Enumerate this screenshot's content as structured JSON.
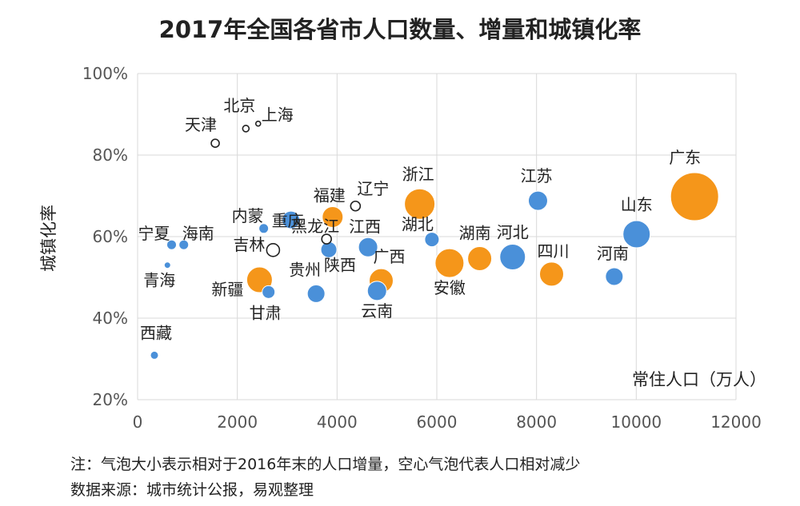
{
  "chart_data": {
    "type": "scatter",
    "title": "2017年全国各省市人口数量、增量和城镇化率",
    "xlabel": "常住人口（万人）",
    "ylabel": "城镇化率",
    "xlim": [
      0,
      12000
    ],
    "ylim": [
      20,
      100
    ],
    "x_ticks": [
      "0",
      "2000",
      "4000",
      "6000",
      "8000",
      "10000",
      "12000"
    ],
    "y_ticks": [
      "20%",
      "40%",
      "60%",
      "80%",
      "100%"
    ],
    "grid": "vertical and horizontal",
    "colors": {
      "blue": "#4a90d9",
      "orange": "#f5961a",
      "hollow": "#222222"
    },
    "points": [
      {
        "name": "广东",
        "x": 11169,
        "y": 69.8,
        "r": 30,
        "type": "orange"
      },
      {
        "name": "山东",
        "x": 10006,
        "y": 60.6,
        "r": 17,
        "type": "blue"
      },
      {
        "name": "河南",
        "x": 9559,
        "y": 50.2,
        "r": 11,
        "type": "blue"
      },
      {
        "name": "四川",
        "x": 8302,
        "y": 50.8,
        "r": 15,
        "type": "orange"
      },
      {
        "name": "江苏",
        "x": 8029,
        "y": 68.8,
        "r": 12,
        "type": "blue"
      },
      {
        "name": "河北",
        "x": 7520,
        "y": 55.0,
        "r": 16,
        "type": "blue"
      },
      {
        "name": "湖南",
        "x": 6860,
        "y": 54.6,
        "r": 15,
        "type": "orange"
      },
      {
        "name": "安徽",
        "x": 6255,
        "y": 53.5,
        "r": 18,
        "type": "orange"
      },
      {
        "name": "湖北",
        "x": 5902,
        "y": 59.3,
        "r": 9,
        "type": "blue"
      },
      {
        "name": "浙江",
        "x": 5657,
        "y": 68.0,
        "r": 19,
        "type": "orange"
      },
      {
        "name": "广西",
        "x": 4885,
        "y": 49.2,
        "r": 15,
        "type": "orange"
      },
      {
        "name": "云南",
        "x": 4801,
        "y": 46.7,
        "r": 12,
        "type": "blue"
      },
      {
        "name": "江西",
        "x": 4622,
        "y": 57.4,
        "r": 12,
        "type": "blue"
      },
      {
        "name": "辽宁",
        "x": 4369,
        "y": 67.5,
        "r": 6,
        "type": "hollow"
      },
      {
        "name": "福建",
        "x": 3911,
        "y": 64.8,
        "r": 13,
        "type": "orange"
      },
      {
        "name": "陕西",
        "x": 3835,
        "y": 56.8,
        "r": 10,
        "type": "blue"
      },
      {
        "name": "黑龙江",
        "x": 3789,
        "y": 59.4,
        "r": 6,
        "type": "hollow"
      },
      {
        "name": "贵州",
        "x": 3580,
        "y": 46.0,
        "r": 11,
        "type": "blue"
      },
      {
        "name": "重庆",
        "x": 3075,
        "y": 64.1,
        "r": 11,
        "type": "blue"
      },
      {
        "name": "吉林",
        "x": 2717,
        "y": 56.7,
        "r": 8,
        "type": "hollow"
      },
      {
        "name": "甘肃",
        "x": 2626,
        "y": 46.4,
        "r": 8,
        "type": "blue"
      },
      {
        "name": "内蒙",
        "x": 2529,
        "y": 62.0,
        "r": 6,
        "type": "blue"
      },
      {
        "name": "新疆",
        "x": 2445,
        "y": 49.4,
        "r": 16,
        "type": "orange"
      },
      {
        "name": "上海",
        "x": 2418,
        "y": 87.7,
        "r": 3,
        "type": "hollow"
      },
      {
        "name": "北京",
        "x": 2171,
        "y": 86.5,
        "r": 4,
        "type": "hollow"
      },
      {
        "name": "天津",
        "x": 1557,
        "y": 82.9,
        "r": 5,
        "type": "hollow"
      },
      {
        "name": "海南",
        "x": 926,
        "y": 58.0,
        "r": 6,
        "type": "blue"
      },
      {
        "name": "宁夏",
        "x": 682,
        "y": 58.0,
        "r": 6,
        "type": "blue"
      },
      {
        "name": "青海",
        "x": 598,
        "y": 53.0,
        "r": 4,
        "type": "blue"
      },
      {
        "name": "西藏",
        "x": 337,
        "y": 30.9,
        "r": 5,
        "type": "blue"
      }
    ]
  },
  "notes": {
    "line1": "注：气泡大小表示相对于2016年末的人口增量，空心气泡代表人口相对减少",
    "line2": "数据来源：城市统计公报，易观整理"
  }
}
